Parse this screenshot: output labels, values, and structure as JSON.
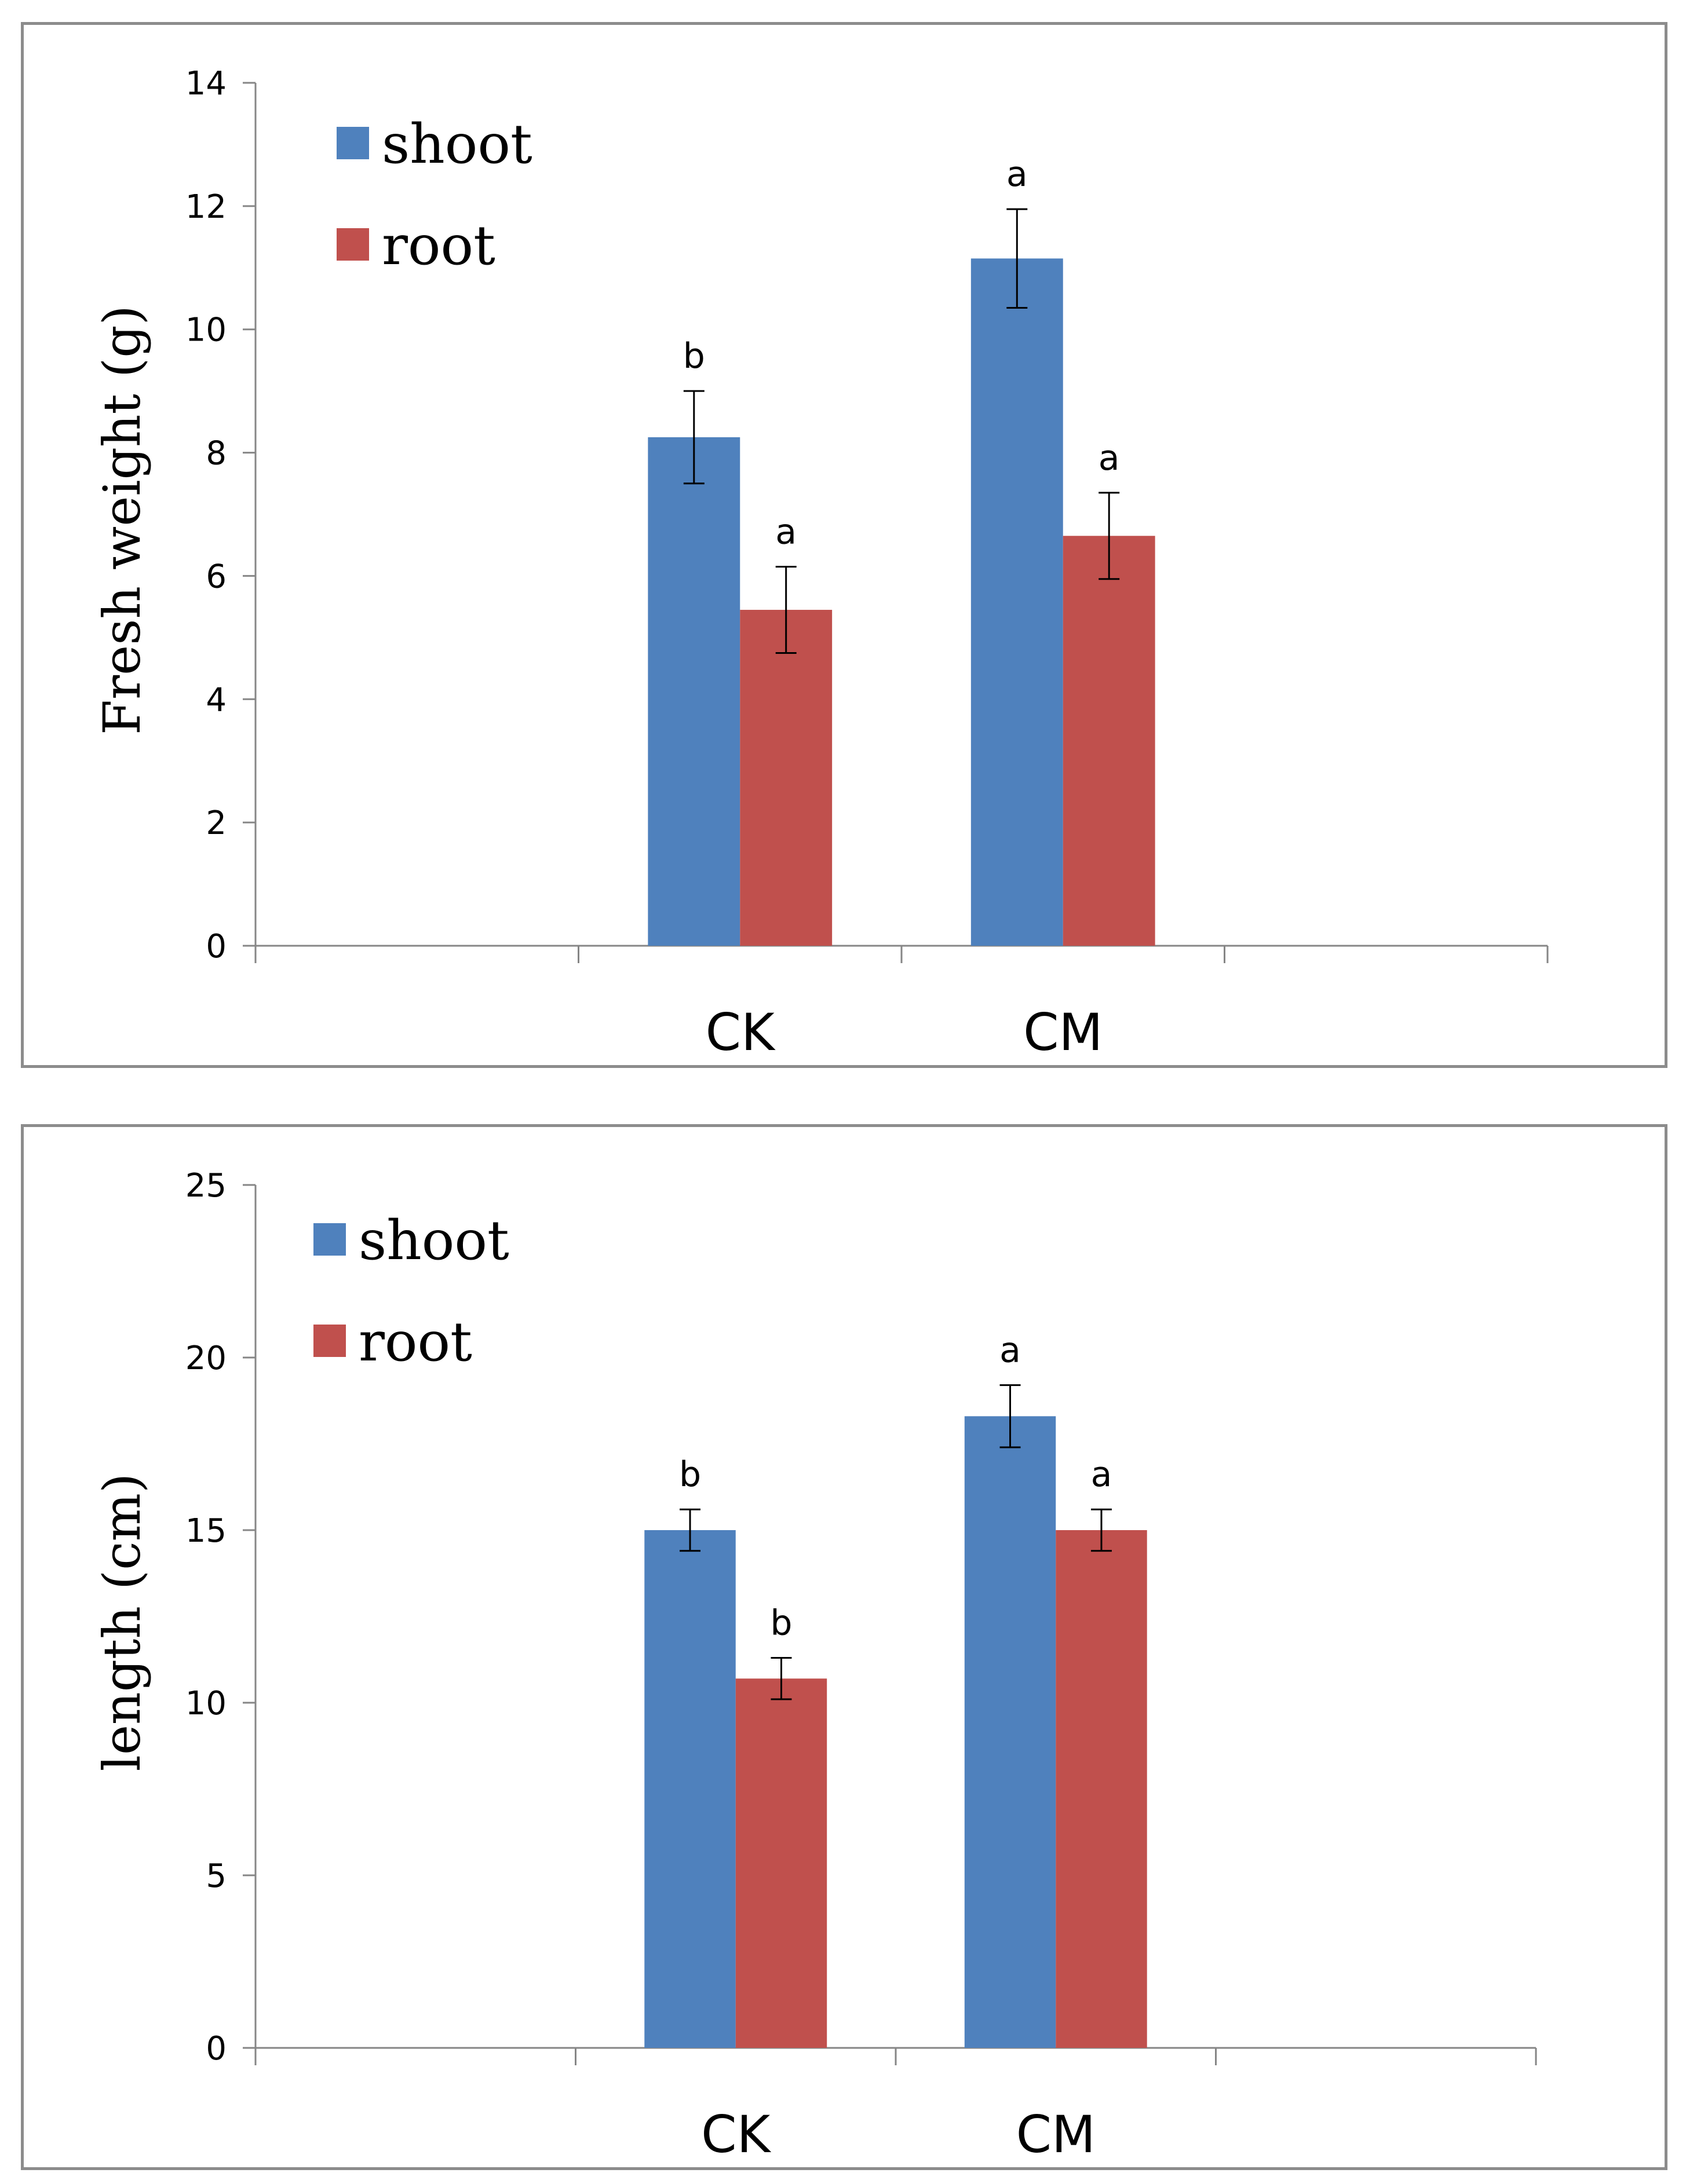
{
  "chart_data": [
    {
      "type": "bar",
      "ylabel": "Fresh weight (g)",
      "xlabel": "",
      "categories": [
        "",
        "CK",
        "CM",
        ""
      ],
      "ylim": [
        0,
        14
      ],
      "yticks": [
        0,
        2,
        4,
        6,
        8,
        10,
        12,
        14
      ],
      "ytick_labels": [
        "0",
        "2",
        "4",
        "6",
        "8",
        "10",
        "12",
        "14"
      ],
      "legend_position": "top-left",
      "colors": {
        "shoot": "#4f81bd",
        "root": "#c0504d"
      },
      "series": [
        {
          "name": "shoot",
          "values": [
            null,
            8.25,
            11.15,
            null
          ],
          "errors": [
            null,
            0.75,
            0.8,
            null
          ],
          "significance": [
            "",
            "b",
            "a",
            ""
          ]
        },
        {
          "name": "root",
          "values": [
            null,
            5.45,
            6.65,
            null
          ],
          "errors": [
            null,
            0.7,
            0.7,
            null
          ],
          "significance": [
            "",
            "a",
            "a",
            ""
          ]
        }
      ]
    },
    {
      "type": "bar",
      "ylabel": "length (cm)",
      "xlabel": "",
      "categories": [
        "",
        "CK",
        "CM",
        ""
      ],
      "ylim": [
        0,
        25
      ],
      "yticks": [
        0,
        5,
        10,
        15,
        20,
        25
      ],
      "ytick_labels": [
        "0",
        "5",
        "10",
        "15",
        "20",
        "25"
      ],
      "legend_position": "top-left",
      "colors": {
        "shoot": "#4f81bd",
        "root": "#c0504d"
      },
      "series": [
        {
          "name": "shoot",
          "values": [
            null,
            15.0,
            18.3,
            null
          ],
          "errors": [
            null,
            0.6,
            0.9,
            null
          ],
          "significance": [
            "",
            "b",
            "a",
            ""
          ]
        },
        {
          "name": "root",
          "values": [
            null,
            10.7,
            15.0,
            null
          ],
          "errors": [
            null,
            0.6,
            0.6,
            null
          ],
          "significance": [
            "",
            "b",
            "a",
            ""
          ]
        }
      ]
    }
  ]
}
